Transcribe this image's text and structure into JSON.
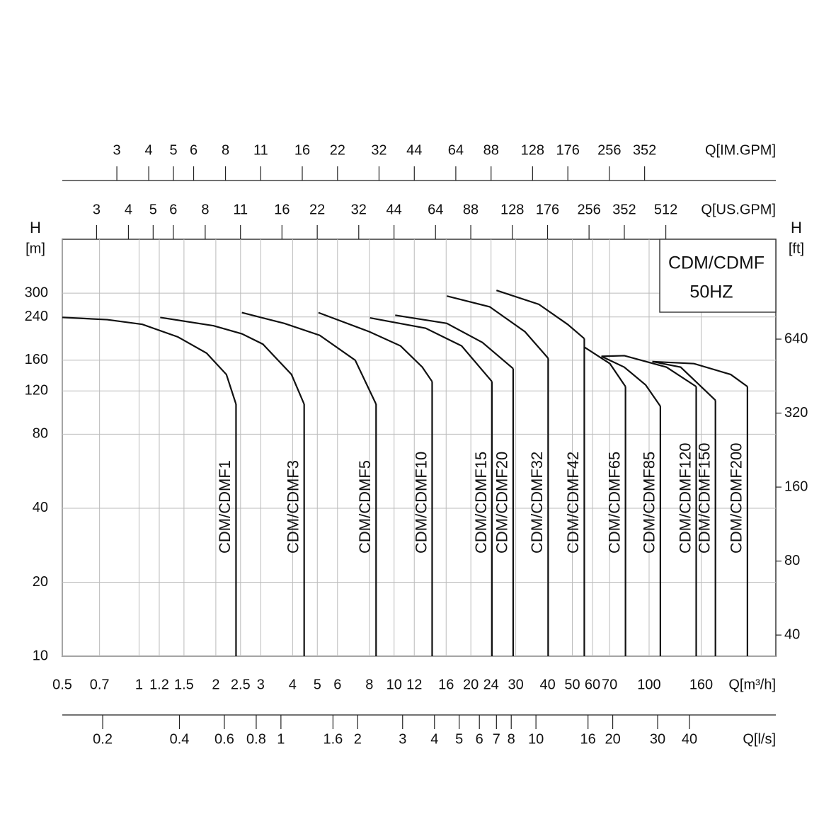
{
  "chart_data": {
    "type": "line",
    "xscale": "log",
    "yscale": "log",
    "grid": true,
    "line_color": "#111",
    "box_title": "CDM/CDMF",
    "box_subtitle": "50HZ",
    "xlabel": "Q[m³/h]",
    "xlim": [
      0.5,
      314
    ],
    "xticks": [
      0.5,
      0.7,
      1,
      1.2,
      1.5,
      2,
      2.5,
      3,
      4,
      5,
      6,
      8,
      10,
      12,
      16,
      20,
      24,
      30,
      40,
      50,
      60,
      70,
      100,
      160
    ],
    "ylabel": {
      "symbol": "H",
      "unit": "[m]"
    },
    "ylim": [
      10,
      497
    ],
    "yticks": [
      10,
      20,
      40,
      80,
      120,
      160,
      240,
      300
    ],
    "y2label": {
      "symbol": "H",
      "unit": "[ft]"
    },
    "y2lim": [
      32.81,
      1631
    ],
    "y2ticks": [
      40,
      80,
      160,
      320,
      640
    ],
    "x_im": {
      "label": "Q[IM.GPM]",
      "xlim": [
        1.833,
        1151
      ],
      "xticks": [
        3,
        4,
        5,
        6,
        8,
        11,
        16,
        22,
        32,
        44,
        64,
        88,
        128,
        176,
        256,
        352
      ]
    },
    "x_us": {
      "label": "Q[US.GPM]",
      "xlim": [
        2.2015,
        1382.5
      ],
      "xticks": [
        3,
        4,
        5,
        6,
        8,
        11,
        16,
        22,
        32,
        44,
        64,
        88,
        128,
        176,
        256,
        352,
        512
      ]
    },
    "x_ls": {
      "label": "Q[l/s]",
      "xlim": [
        0.13889,
        87.22
      ],
      "xticks": [
        0.2,
        0.4,
        0.6,
        0.8,
        1,
        1.6,
        2,
        3,
        4,
        5,
        6,
        7,
        8,
        10,
        16,
        20,
        30,
        40
      ]
    },
    "series": [
      {
        "name": "CDM/CDMF1",
        "x": [
          0.5,
          0.75,
          1.03,
          1.42,
          1.84,
          2.2,
          2.4
        ],
        "values": [
          239,
          234,
          224,
          199,
          171,
          140,
          106
        ]
      },
      {
        "name": "CDM/CDMF3",
        "x": [
          1.21,
          1.96,
          2.53,
          3.06,
          3.96,
          4.44
        ],
        "values": [
          239,
          221,
          205,
          186,
          140,
          106
        ]
      },
      {
        "name": "CDM/CDMF5",
        "x": [
          2.53,
          3.71,
          5.11,
          7.04,
          8.5
        ],
        "values": [
          250,
          226,
          202,
          160,
          106
        ]
      },
      {
        "name": "CDM/CDMF10",
        "x": [
          5.05,
          8.0,
          10.6,
          12.9,
          14.1
        ],
        "values": [
          250,
          209,
          183,
          150,
          131
        ]
      },
      {
        "name": "CDM/CDMF15",
        "x": [
          8.05,
          13.3,
          18.4,
          24.2
        ],
        "values": [
          238,
          216,
          183,
          131
        ]
      },
      {
        "name": "CDM/CDMF20",
        "x": [
          10.1,
          16.1,
          22.2,
          29.3
        ],
        "values": [
          244,
          226,
          189,
          148
        ]
      },
      {
        "name": "CDM/CDMF32",
        "x": [
          16.1,
          23.7,
          32.6,
          40.2
        ],
        "values": [
          292,
          264,
          209,
          163
        ]
      },
      {
        "name": "CDM/CDMF42",
        "x": [
          25.2,
          37.0,
          47.9,
          55.7
        ],
        "values": [
          308,
          270,
          224,
          196
        ]
      },
      {
        "name": "CDM/CDMF65",
        "x": [
          55.7,
          70.2,
          80.8
        ],
        "values": [
          181,
          155,
          125
        ]
      },
      {
        "name": "CDM/CDMF85",
        "x": [
          65.0,
          79.9,
          96.9,
          110.7
        ],
        "values": [
          166,
          150,
          127,
          104
        ]
      },
      {
        "name": "CDM/CDMF120",
        "x": [
          65.0,
          80.0,
          117,
          153
        ],
        "values": [
          166,
          167,
          150,
          125
        ]
      },
      {
        "name": "CDM/CDMF150",
        "x": [
          103,
          133,
          182
        ],
        "values": [
          158,
          150,
          110
        ]
      },
      {
        "name": "CDM/CDMF200",
        "x": [
          103,
          150,
          209,
          243
        ],
        "values": [
          158,
          155,
          140,
          125
        ]
      }
    ]
  }
}
